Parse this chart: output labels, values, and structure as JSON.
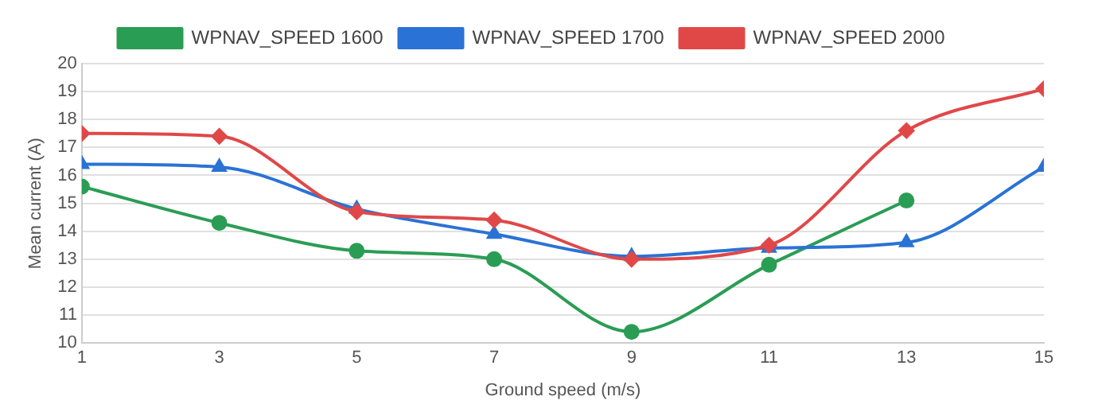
{
  "chart_data": {
    "type": "line",
    "xlabel": "Ground speed (m/s)",
    "ylabel": "Mean current (A)",
    "xlim": [
      1,
      15
    ],
    "xticks": [
      1,
      3,
      5,
      7,
      9,
      11,
      13,
      15
    ],
    "ylim": [
      10,
      20
    ],
    "yticks": [
      10,
      11,
      12,
      13,
      14,
      15,
      16,
      17,
      18,
      19,
      20
    ],
    "grid": "y",
    "legend": "top",
    "series": [
      {
        "name": "WPNAV_SPEED 1600",
        "color": "#2a9d55",
        "marker": "circle",
        "x": [
          1,
          3,
          5,
          7,
          9,
          11,
          13
        ],
        "values": [
          15.6,
          14.3,
          13.3,
          13.0,
          10.4,
          12.8,
          15.1
        ]
      },
      {
        "name": "WPNAV_SPEED 1700",
        "color": "#2a72d5",
        "marker": "triangle",
        "x": [
          1,
          3,
          5,
          7,
          9,
          11,
          13,
          15
        ],
        "values": [
          16.4,
          16.3,
          14.8,
          13.9,
          13.1,
          13.4,
          13.6,
          16.3
        ]
      },
      {
        "name": "WPNAV_SPEED 2000",
        "color": "#e04848",
        "marker": "diamond",
        "x": [
          1,
          3,
          5,
          7,
          9,
          11,
          13,
          15
        ],
        "values": [
          17.5,
          17.4,
          14.7,
          14.4,
          13.0,
          13.5,
          17.6,
          19.1
        ]
      }
    ]
  }
}
